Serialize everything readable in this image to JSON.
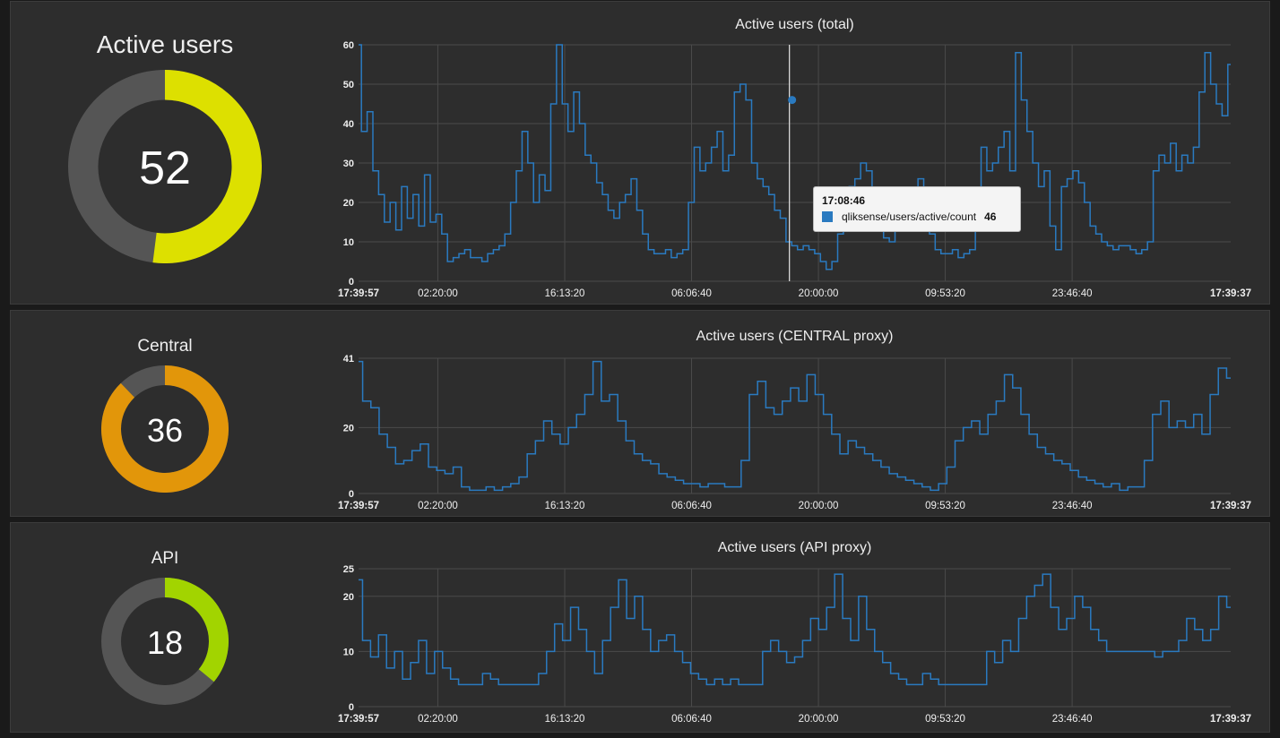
{
  "panels": [
    {
      "gauge": {
        "title": "Active users",
        "value": "52",
        "fraction": 0.52,
        "color": "#dde000"
      },
      "chart_data": {
        "type": "line",
        "title": "Active users (total)",
        "series": [
          {
            "values": [
              60,
              38,
              43,
              28,
              22,
              15,
              20,
              13,
              24,
              16,
              22,
              14,
              27,
              15,
              17,
              12,
              5,
              6,
              7,
              8,
              6,
              6,
              5,
              7,
              8,
              9,
              12,
              20,
              28,
              38,
              30,
              20,
              27,
              23,
              45,
              60,
              45,
              38,
              48,
              40,
              32,
              30,
              25,
              22,
              18,
              16,
              20,
              22,
              26,
              18,
              12,
              8,
              7,
              7,
              8,
              6,
              7,
              8,
              20,
              34,
              28,
              30,
              34,
              38,
              28,
              32,
              48,
              50,
              46,
              30,
              26,
              24,
              22,
              18,
              16,
              10,
              9,
              8,
              9,
              8,
              7,
              5,
              3,
              5,
              12,
              20,
              24,
              26,
              30,
              28,
              22,
              16,
              11,
              10,
              14,
              16,
              17,
              22,
              26,
              18,
              12,
              8,
              7,
              7,
              8,
              6,
              7,
              8,
              20,
              34,
              28,
              30,
              34,
              38,
              28,
              58,
              46,
              38,
              30,
              24,
              28,
              14,
              8,
              24,
              26,
              28,
              25,
              20,
              14,
              12,
              10,
              9,
              8,
              9,
              9,
              8,
              7,
              8,
              10,
              28,
              32,
              30,
              35,
              28,
              32,
              30,
              34,
              48,
              58,
              50,
              45,
              42,
              55
            ]
          }
        ],
        "ylim": [
          0,
          60
        ],
        "yticks": [
          "0",
          "10",
          "20",
          "30",
          "40",
          "50",
          "60"
        ],
        "xticks": [
          "17:39:57",
          "02:20:00",
          "16:13:20",
          "06:06:40",
          "20:00:00",
          "09:53:20",
          "23:46:40",
          "17:39:37"
        ],
        "cursor_fraction": 0.494
      },
      "tooltip": {
        "time": "17:08:46",
        "series": "qliksense/users/active/count",
        "value": "46"
      }
    },
    {
      "gauge": {
        "title": "Central",
        "value": "36",
        "fraction": 0.878,
        "color": "#e2960a"
      },
      "chart_data": {
        "type": "line",
        "title": "Active users (CENTRAL proxy)",
        "series": [
          {
            "values": [
              40,
              28,
              26,
              18,
              14,
              9,
              10,
              13,
              15,
              8,
              7,
              6,
              8,
              2,
              1,
              1,
              2,
              1,
              2,
              3,
              5,
              12,
              16,
              22,
              18,
              15,
              20,
              24,
              30,
              40,
              28,
              30,
              22,
              16,
              12,
              10,
              9,
              6,
              5,
              4,
              3,
              3,
              2,
              3,
              3,
              2,
              2,
              10,
              30,
              34,
              26,
              24,
              28,
              32,
              28,
              36,
              30,
              24,
              18,
              12,
              16,
              14,
              12,
              10,
              8,
              6,
              5,
              4,
              3,
              2,
              1,
              3,
              8,
              16,
              20,
              22,
              18,
              24,
              28,
              36,
              32,
              24,
              18,
              14,
              12,
              10,
              9,
              7,
              5,
              4,
              3,
              2,
              3,
              1,
              2,
              2,
              10,
              24,
              28,
              20,
              22,
              20,
              24,
              18,
              30,
              38,
              35
            ]
          }
        ],
        "ylim": [
          0,
          41
        ],
        "yticks": [
          "0",
          "20",
          "41"
        ],
        "xticks": [
          "17:39:57",
          "02:20:00",
          "16:13:20",
          "06:06:40",
          "20:00:00",
          "09:53:20",
          "23:46:40",
          "17:39:37"
        ]
      }
    },
    {
      "gauge": {
        "title": "API",
        "value": "18",
        "fraction": 0.36,
        "color": "#a2d400"
      },
      "chart_data": {
        "type": "line",
        "title": "Active users (API proxy)",
        "series": [
          {
            "values": [
              23,
              12,
              9,
              13,
              7,
              10,
              5,
              8,
              12,
              6,
              10,
              7,
              5,
              4,
              4,
              4,
              6,
              5,
              4,
              4,
              4,
              4,
              4,
              6,
              10,
              15,
              12,
              18,
              14,
              10,
              6,
              12,
              18,
              23,
              16,
              20,
              14,
              10,
              12,
              13,
              10,
              8,
              6,
              5,
              4,
              5,
              4,
              5,
              4,
              4,
              4,
              10,
              12,
              10,
              8,
              9,
              12,
              16,
              14,
              18,
              24,
              16,
              12,
              20,
              14,
              10,
              8,
              6,
              5,
              4,
              4,
              6,
              5,
              4,
              4,
              4,
              4,
              4,
              4,
              10,
              8,
              12,
              10,
              16,
              20,
              22,
              24,
              18,
              14,
              16,
              20,
              18,
              14,
              12,
              10,
              10,
              10,
              10,
              10,
              10,
              9,
              10,
              10,
              12,
              16,
              14,
              12,
              14,
              20,
              18
            ]
          }
        ],
        "ylim": [
          0,
          25
        ],
        "yticks": [
          "0",
          "10",
          "20",
          "25"
        ],
        "xticks": [
          "17:39:57",
          "02:20:00",
          "16:13:20",
          "06:06:40",
          "20:00:00",
          "09:53:20",
          "23:46:40",
          "17:39:37"
        ]
      }
    }
  ]
}
